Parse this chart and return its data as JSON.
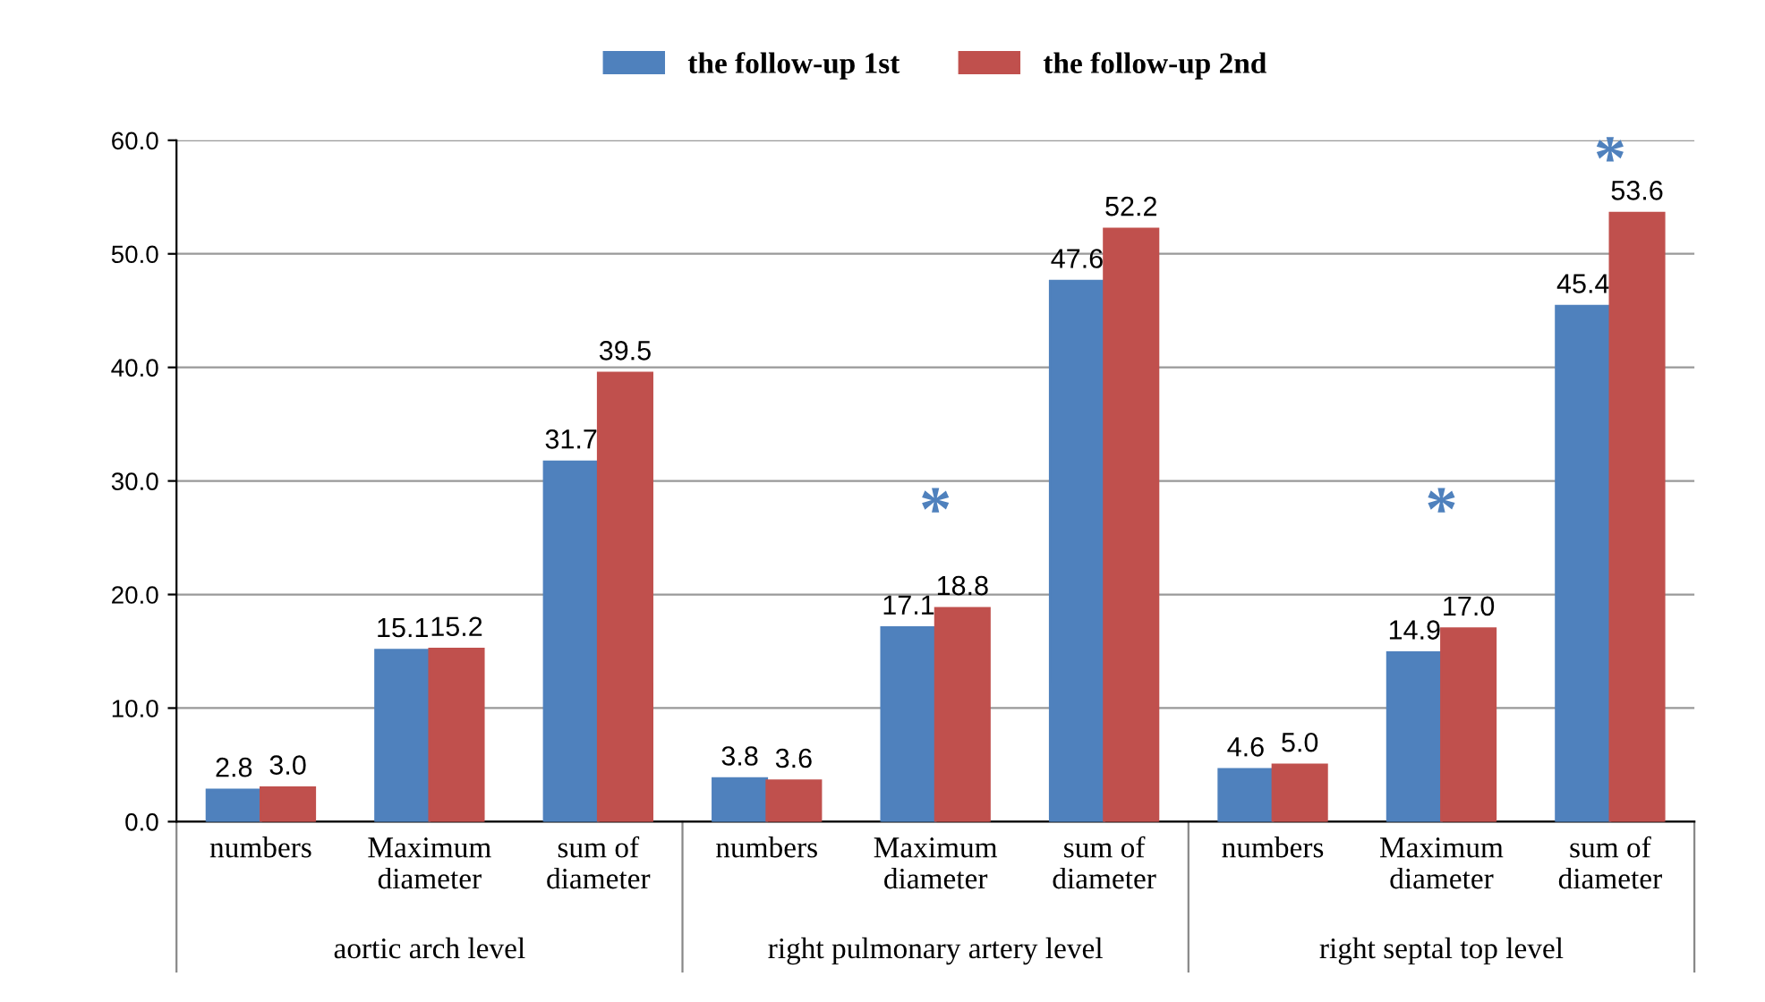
{
  "chart_data": {
    "type": "bar",
    "categories": [
      "numbers",
      "Maximum\ndiameter",
      "sum of\ndiameter",
      "numbers",
      "Maximum\ndiameter",
      "sum of\ndiameter",
      "numbers",
      "Maximum\ndiameter",
      "sum of\ndiameter"
    ],
    "series": [
      {
        "name": "the follow-up 1st",
        "color": "#4f81bd",
        "values": [
          2.8,
          15.1,
          31.7,
          3.8,
          17.1,
          47.6,
          4.6,
          14.9,
          45.4
        ],
        "value_labels": [
          "2.8",
          "15.1",
          "31.7",
          "3.8",
          "17.1",
          "47.6",
          "4.6",
          "14.9",
          "45.4"
        ]
      },
      {
        "name": "the follow-up 2nd",
        "color": "#c0504d",
        "values": [
          3.0,
          15.2,
          39.5,
          3.6,
          18.8,
          52.2,
          5.0,
          17.0,
          53.6
        ],
        "value_labels": [
          "3.0",
          "15.2",
          "39.5",
          "3.6",
          "18.8",
          "52.2",
          "5.0",
          "17.0",
          "53.6"
        ]
      }
    ],
    "ylim": [
      0,
      60
    ],
    "yticks": [
      {
        "value": 0,
        "label": "0.0"
      },
      {
        "value": 10,
        "label": "10.0"
      },
      {
        "value": 20,
        "label": "20.0"
      },
      {
        "value": 30,
        "label": "30.0"
      },
      {
        "value": 40,
        "label": "40.0"
      },
      {
        "value": 50,
        "label": "50.0"
      },
      {
        "value": 60,
        "label": "60.0"
      }
    ],
    "grid": "y",
    "legend": "top",
    "annotations": [
      "aortic arch level",
      "right pulmonary artery level",
      "right septal top level",
      "*",
      "*",
      "*"
    ]
  }
}
